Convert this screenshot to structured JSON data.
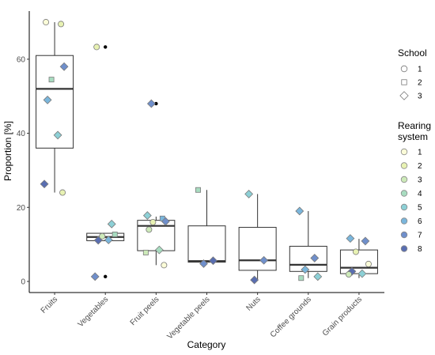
{
  "chart_data": {
    "type": "boxplot",
    "xlabel": "Category",
    "ylabel": "Proportion [%]",
    "ylim": [
      -3,
      73
    ],
    "yticks": [
      0,
      20,
      40,
      60
    ],
    "grid": false,
    "legend_placement": "right",
    "categories": [
      "Fruits",
      "Vegetables",
      "Fruit peels",
      "Vegetable peels",
      "Nuts",
      "Coffee grounds",
      "Grain products"
    ],
    "boxes": [
      {
        "category": "Fruits",
        "q1": 36,
        "median": 52,
        "q3": 61,
        "whisker_low": 24,
        "whisker_high": 70,
        "outliers": []
      },
      {
        "category": "Vegetables",
        "q1": 11,
        "median": 12,
        "q3": 13,
        "whisker_low": 11,
        "whisker_high": 13,
        "outliers": [
          63.3,
          1.3
        ]
      },
      {
        "category": "Fruit peels",
        "q1": 8.3,
        "median": 15,
        "q3": 16.5,
        "whisker_low": 4.4,
        "whisker_high": 17.5,
        "outliers": [
          48
        ]
      },
      {
        "category": "Vegetable peels",
        "q1": 5.2,
        "median": 5.5,
        "q3": 15,
        "whisker_low": 5.2,
        "whisker_high": 24.7,
        "outliers": []
      },
      {
        "category": "Nuts",
        "q1": 3,
        "median": 5.7,
        "q3": 14.6,
        "whisker_low": 0.4,
        "whisker_high": 23.6,
        "outliers": []
      },
      {
        "category": "Coffee grounds",
        "q1": 2.7,
        "median": 4.5,
        "q3": 9.5,
        "whisker_low": 0.9,
        "whisker_high": 19,
        "outliers": []
      },
      {
        "category": "Grain products",
        "q1": 2.1,
        "median": 3.7,
        "q3": 8.5,
        "whisker_low": 0.9,
        "whisker_high": 11.5,
        "outliers": []
      }
    ],
    "points": [
      {
        "category": "Fruits",
        "school": 1,
        "rearing": 1,
        "y": 70
      },
      {
        "category": "Fruits",
        "school": 1,
        "rearing": 2,
        "y": 69.5
      },
      {
        "category": "Fruits",
        "school": 2,
        "rearing": 4,
        "y": 54.5
      },
      {
        "category": "Fruits",
        "school": 3,
        "rearing": 7,
        "y": 58
      },
      {
        "category": "Fruits",
        "school": 3,
        "rearing": 6,
        "y": 49
      },
      {
        "category": "Fruits",
        "school": 3,
        "rearing": 5,
        "y": 39.5
      },
      {
        "category": "Fruits",
        "school": 3,
        "rearing": 8,
        "y": 26.3
      },
      {
        "category": "Fruits",
        "school": 1,
        "rearing": 2,
        "y": 24
      },
      {
        "category": "Vegetables",
        "school": 1,
        "rearing": 2,
        "y": 63.3
      },
      {
        "category": "Vegetables",
        "school": 3,
        "rearing": 5,
        "y": 15.5
      },
      {
        "category": "Vegetables",
        "school": 1,
        "rearing": 3,
        "y": 12.2
      },
      {
        "category": "Vegetables",
        "school": 2,
        "rearing": 4,
        "y": 12.7
      },
      {
        "category": "Vegetables",
        "school": 3,
        "rearing": 8,
        "y": 11.1
      },
      {
        "category": "Vegetables",
        "school": 3,
        "rearing": 6,
        "y": 11.2
      },
      {
        "category": "Vegetables",
        "school": 3,
        "rearing": 7,
        "y": 1.3
      },
      {
        "category": "Fruit peels",
        "school": 3,
        "rearing": 5,
        "y": 17.8
      },
      {
        "category": "Fruit peels",
        "school": 2,
        "rearing": 6,
        "y": 17
      },
      {
        "category": "Fruit peels",
        "school": 1,
        "rearing": 2,
        "y": 16
      },
      {
        "category": "Fruit peels",
        "school": 3,
        "rearing": 7,
        "y": 16.2
      },
      {
        "category": "Fruit peels",
        "school": 1,
        "rearing": 3,
        "y": 14
      },
      {
        "category": "Fruit peels",
        "school": 3,
        "rearing": 4,
        "y": 8.5
      },
      {
        "category": "Fruit peels",
        "school": 2,
        "rearing": 3,
        "y": 7.8
      },
      {
        "category": "Fruit peels",
        "school": 1,
        "rearing": 1,
        "y": 4.4
      },
      {
        "category": "Fruit peels",
        "school": 3,
        "rearing": 7,
        "y": 48
      },
      {
        "category": "Vegetable peels",
        "school": 2,
        "rearing": 4,
        "y": 24.7
      },
      {
        "category": "Vegetable peels",
        "school": 3,
        "rearing": 8,
        "y": 5.6
      },
      {
        "category": "Vegetable peels",
        "school": 3,
        "rearing": 7,
        "y": 4.8
      },
      {
        "category": "Nuts",
        "school": 3,
        "rearing": 5,
        "y": 23.6
      },
      {
        "category": "Nuts",
        "school": 3,
        "rearing": 7,
        "y": 5.7
      },
      {
        "category": "Nuts",
        "school": 3,
        "rearing": 8,
        "y": 0.4
      },
      {
        "category": "Coffee grounds",
        "school": 3,
        "rearing": 6,
        "y": 19
      },
      {
        "category": "Coffee grounds",
        "school": 3,
        "rearing": 7,
        "y": 6.3
      },
      {
        "category": "Coffee grounds",
        "school": 3,
        "rearing": 6,
        "y": 3.2
      },
      {
        "category": "Coffee grounds",
        "school": 3,
        "rearing": 5,
        "y": 1.3
      },
      {
        "category": "Coffee grounds",
        "school": 2,
        "rearing": 4,
        "y": 0.9
      },
      {
        "category": "Grain products",
        "school": 3,
        "rearing": 6,
        "y": 11.6
      },
      {
        "category": "Grain products",
        "school": 3,
        "rearing": 7,
        "y": 10.9
      },
      {
        "category": "Grain products",
        "school": 1,
        "rearing": 2,
        "y": 8
      },
      {
        "category": "Grain products",
        "school": 1,
        "rearing": 1,
        "y": 4.7
      },
      {
        "category": "Grain products",
        "school": 3,
        "rearing": 8,
        "y": 2.7
      },
      {
        "category": "Grain products",
        "school": 3,
        "rearing": 5,
        "y": 2.1
      },
      {
        "category": "Grain products",
        "school": 1,
        "rearing": 3,
        "y": 1.9
      }
    ],
    "legend": {
      "school_title": "School",
      "school_items": [
        {
          "label": "1",
          "shape": "circle"
        },
        {
          "label": "2",
          "shape": "square"
        },
        {
          "label": "3",
          "shape": "diamond"
        }
      ],
      "rearing_title_line1": "Rearing",
      "rearing_title_line2": "system",
      "rearing_items": [
        {
          "label": "1",
          "color": "#fbfcd8"
        },
        {
          "label": "2",
          "color": "#e8f2b3"
        },
        {
          "label": "3",
          "color": "#cdeab9"
        },
        {
          "label": "4",
          "color": "#a8dcc0"
        },
        {
          "label": "5",
          "color": "#8dd0d6"
        },
        {
          "label": "6",
          "color": "#7ab6dc"
        },
        {
          "label": "7",
          "color": "#6f8fcb"
        },
        {
          "label": "8",
          "color": "#596eb1"
        }
      ]
    }
  }
}
